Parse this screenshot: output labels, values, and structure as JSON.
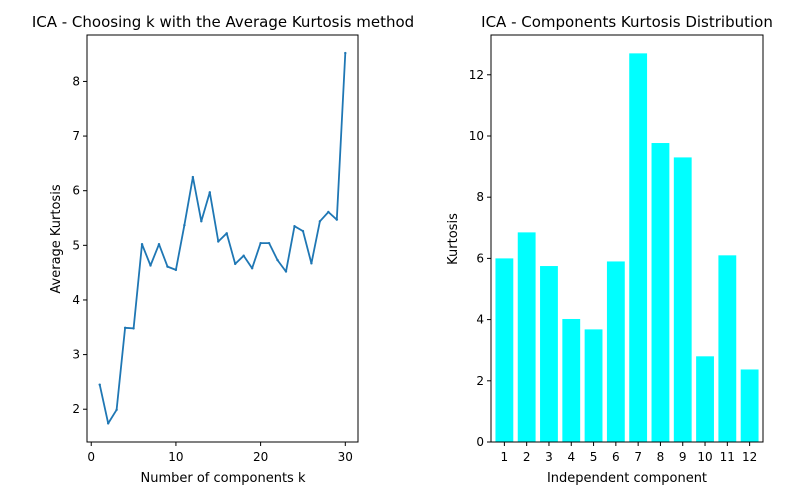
{
  "chart_data": [
    {
      "type": "line",
      "title": "ICA - Choosing k with the Average Kurtosis method",
      "xlabel": "Number of components k",
      "ylabel": "Average Kurtosis",
      "xlim": [
        -0.5,
        31.5
      ],
      "ylim": [
        1.4,
        8.85
      ],
      "xticks": [
        0,
        10,
        20,
        30
      ],
      "yticks": [
        2,
        3,
        4,
        5,
        6,
        7,
        8
      ],
      "grid": false,
      "color": "#1f77b4",
      "x": [
        1,
        2,
        3,
        4,
        5,
        6,
        7,
        8,
        9,
        10,
        11,
        12,
        13,
        14,
        15,
        16,
        17,
        18,
        19,
        20,
        21,
        22,
        23,
        24,
        25,
        26,
        27,
        28,
        29,
        30
      ],
      "y": [
        2.45,
        1.74,
        1.99,
        3.49,
        3.48,
        5.02,
        4.63,
        5.02,
        4.61,
        4.55,
        5.37,
        6.25,
        5.44,
        5.97,
        5.07,
        5.22,
        4.66,
        4.81,
        4.58,
        5.04,
        5.04,
        4.73,
        4.52,
        5.35,
        5.26,
        4.67,
        5.44,
        5.61,
        5.47,
        8.52
      ]
    },
    {
      "type": "bar",
      "title": "ICA - Components Kurtosis Distribution",
      "xlabel": "Independent component",
      "ylabel": "Kurtosis",
      "ylim": [
        0,
        13.3
      ],
      "yticks": [
        0,
        2,
        4,
        6,
        8,
        10,
        12
      ],
      "grid": false,
      "color": "#00ffff",
      "categories": [
        "1",
        "2",
        "3",
        "4",
        "5",
        "6",
        "7",
        "8",
        "9",
        "10",
        "11",
        "12"
      ],
      "values": [
        6.0,
        6.85,
        5.75,
        4.02,
        3.68,
        5.9,
        12.7,
        9.77,
        9.3,
        2.8,
        6.1,
        2.37
      ]
    }
  ]
}
